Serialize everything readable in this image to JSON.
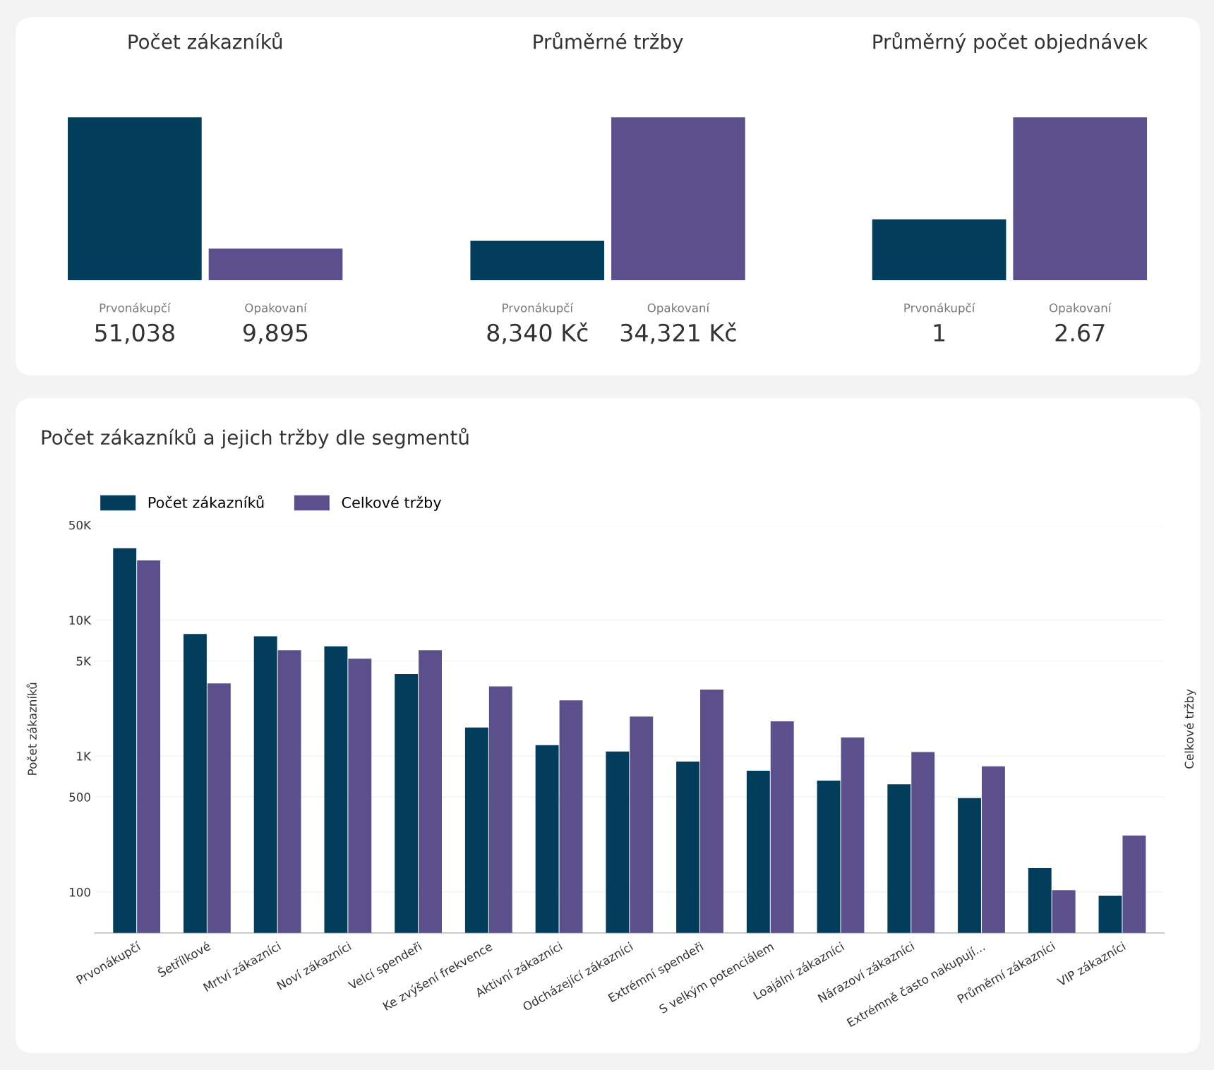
{
  "chart_data": [
    {
      "type": "bar",
      "title": "Počet zákazníků",
      "categories": [
        "Prvonákupčí",
        "Opakovaní"
      ],
      "values": [
        51038,
        9895
      ],
      "colors": [
        "#023e5c",
        "#5c508c"
      ],
      "value_labels": [
        "51,038",
        "9,895"
      ]
    },
    {
      "type": "bar",
      "title": "Průměrné tržby",
      "categories": [
        "Prvonákupčí",
        "Opakovaní"
      ],
      "values": [
        8340,
        34321
      ],
      "colors": [
        "#023e5c",
        "#5c508c"
      ],
      "value_labels": [
        "8,340 Kč",
        "34,321 Kč"
      ]
    },
    {
      "type": "bar",
      "title": "Průměrný počet objednávek",
      "categories": [
        "Prvonákupčí",
        "Opakovaní"
      ],
      "values": [
        1,
        2.67
      ],
      "colors": [
        "#023e5c",
        "#5c508c"
      ],
      "value_labels": [
        "1",
        "2.67"
      ]
    },
    {
      "type": "bar",
      "title": "Počet zákazníků a jejich tržby dle segmentů",
      "ylabel": "Počet zákazníků",
      "y2label": "Celkové tržby",
      "categories": [
        "Prvonákupčí",
        "Šetřílkové",
        "Mrtví zákazníci",
        "Noví zákazníci",
        "Velcí spendeři",
        "Ke zvýšení frekvence",
        "Aktivní zákazníci",
        "Odcházející zákazníci",
        "Extrémní spendeři",
        "S velkým potenciálem",
        "Loajální zákazníci",
        "Nárazoví zákazníci",
        "Extrémně často nakupují...",
        "Průměrní zákazníci",
        "VIP zákazníci"
      ],
      "series": [
        {
          "name": "Počet zákazníků",
          "color": "#023e5c",
          "values": [
            33700,
            7900,
            7600,
            6400,
            4000,
            1620,
            1200,
            1080,
            910,
            780,
            660,
            620,
            490,
            150,
            94
          ]
        },
        {
          "name": "Celkové tržby",
          "color": "#5c508c",
          "values": [
            27400,
            3420,
            6000,
            5200,
            6000,
            3250,
            2570,
            1950,
            3080,
            1800,
            1370,
            1070,
            840,
            103,
            260
          ]
        }
      ],
      "log": true,
      "ylim": [
        50,
        50000
      ],
      "yticks": [
        {
          "value": 100,
          "label": "100"
        },
        {
          "value": 500,
          "label": "500"
        },
        {
          "value": 1000,
          "label": "1K"
        },
        {
          "value": 5000,
          "label": "5K"
        },
        {
          "value": 10000,
          "label": "10K"
        },
        {
          "value": 50000,
          "label": "50K"
        }
      ],
      "grid": "y",
      "legend": "top left"
    }
  ]
}
